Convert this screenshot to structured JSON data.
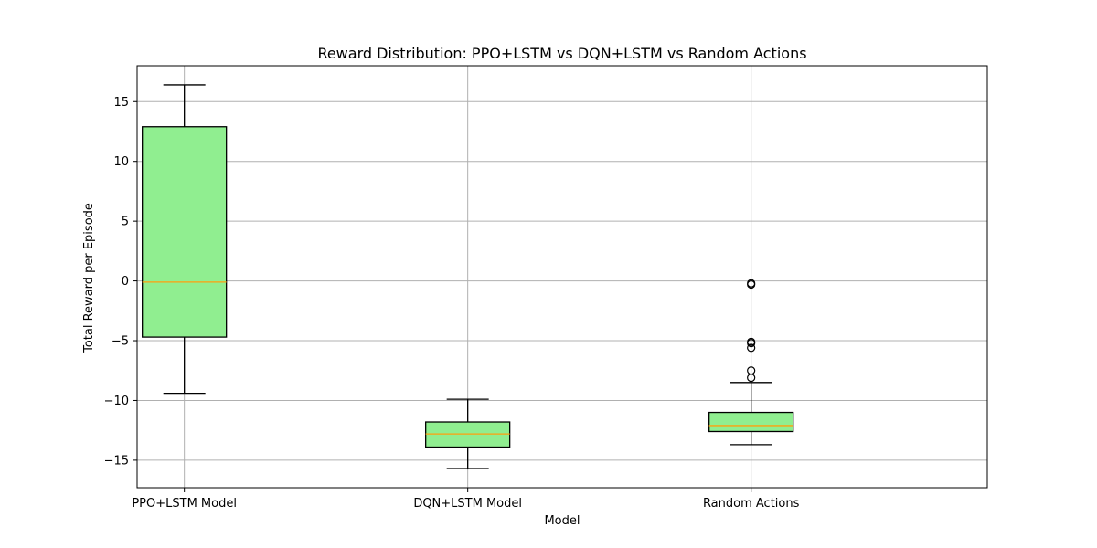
{
  "chart_data": {
    "type": "box",
    "title": "Reward Distribution: PPO+LSTM vs DQN+LSTM vs Random Actions",
    "xlabel": "Model",
    "ylabel": "Total Reward per Episode",
    "ylim": [
      -17.3,
      18.0
    ],
    "yticks": [
      15,
      10,
      5,
      0,
      -5,
      -10,
      -15
    ],
    "ytick_labels": [
      "15",
      "10",
      "5",
      "0",
      "−5",
      "−10",
      "−15"
    ],
    "grid": true,
    "box_color": "#90ee90",
    "median_color": "#ff9f0e",
    "categories": [
      "PPO+LSTM Model",
      "DQN+LSTM Model",
      "Random Actions"
    ],
    "boxes": [
      {
        "name": "PPO+LSTM Model",
        "whisker_low": -9.4,
        "q1": -4.7,
        "median": -0.1,
        "q3": 12.9,
        "whisker_high": 16.4,
        "outliers": []
      },
      {
        "name": "DQN+LSTM Model",
        "whisker_low": -15.7,
        "q1": -13.9,
        "median": -12.8,
        "q3": -11.8,
        "whisker_high": -9.9,
        "outliers": []
      },
      {
        "name": "Random Actions",
        "whisker_low": -13.7,
        "q1": -12.6,
        "median": -12.1,
        "q3": -11.0,
        "whisker_high": -8.5,
        "outliers": [
          -0.2,
          -0.3,
          -5.1,
          -5.2,
          -5.6,
          -7.5,
          -8.1
        ]
      }
    ]
  }
}
